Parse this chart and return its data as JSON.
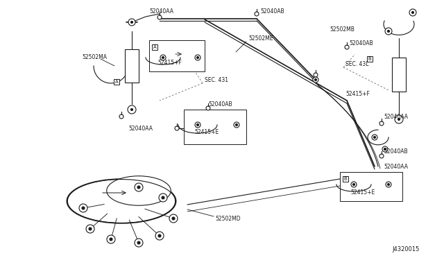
{
  "background_color": "#ffffff",
  "diagram_number": "J4320015",
  "fig_width": 6.4,
  "fig_height": 3.72,
  "dpi": 100,
  "labels": {
    "top_left_shock": "52502MA",
    "top_center_bolt1": "52040AA",
    "top_center_bolt2": "52040AB",
    "upper_hose_label": "52502ME",
    "right_upper": "52502MB",
    "right_bolt1": "52040AB",
    "sec431": "SEC. 431",
    "sec43l": "SEC. 43L",
    "box_a_label": "52415+F",
    "mid_bolt": "52040AB",
    "mid_hose": "52415+E",
    "mid_left_bolt": "52040AA",
    "right_hose_label": "52415+F",
    "right_lower_bolt1": "52040AA",
    "right_lower_bolt2": "52040AB",
    "right_lower_bolt3": "52040AA",
    "bottom_box_label": "52415+E",
    "bottom_harness": "52502MD",
    "diagram_id": "J4320015"
  },
  "colors": {
    "line": "#1a1a1a",
    "dash": "#666666",
    "bg": "#ffffff"
  }
}
